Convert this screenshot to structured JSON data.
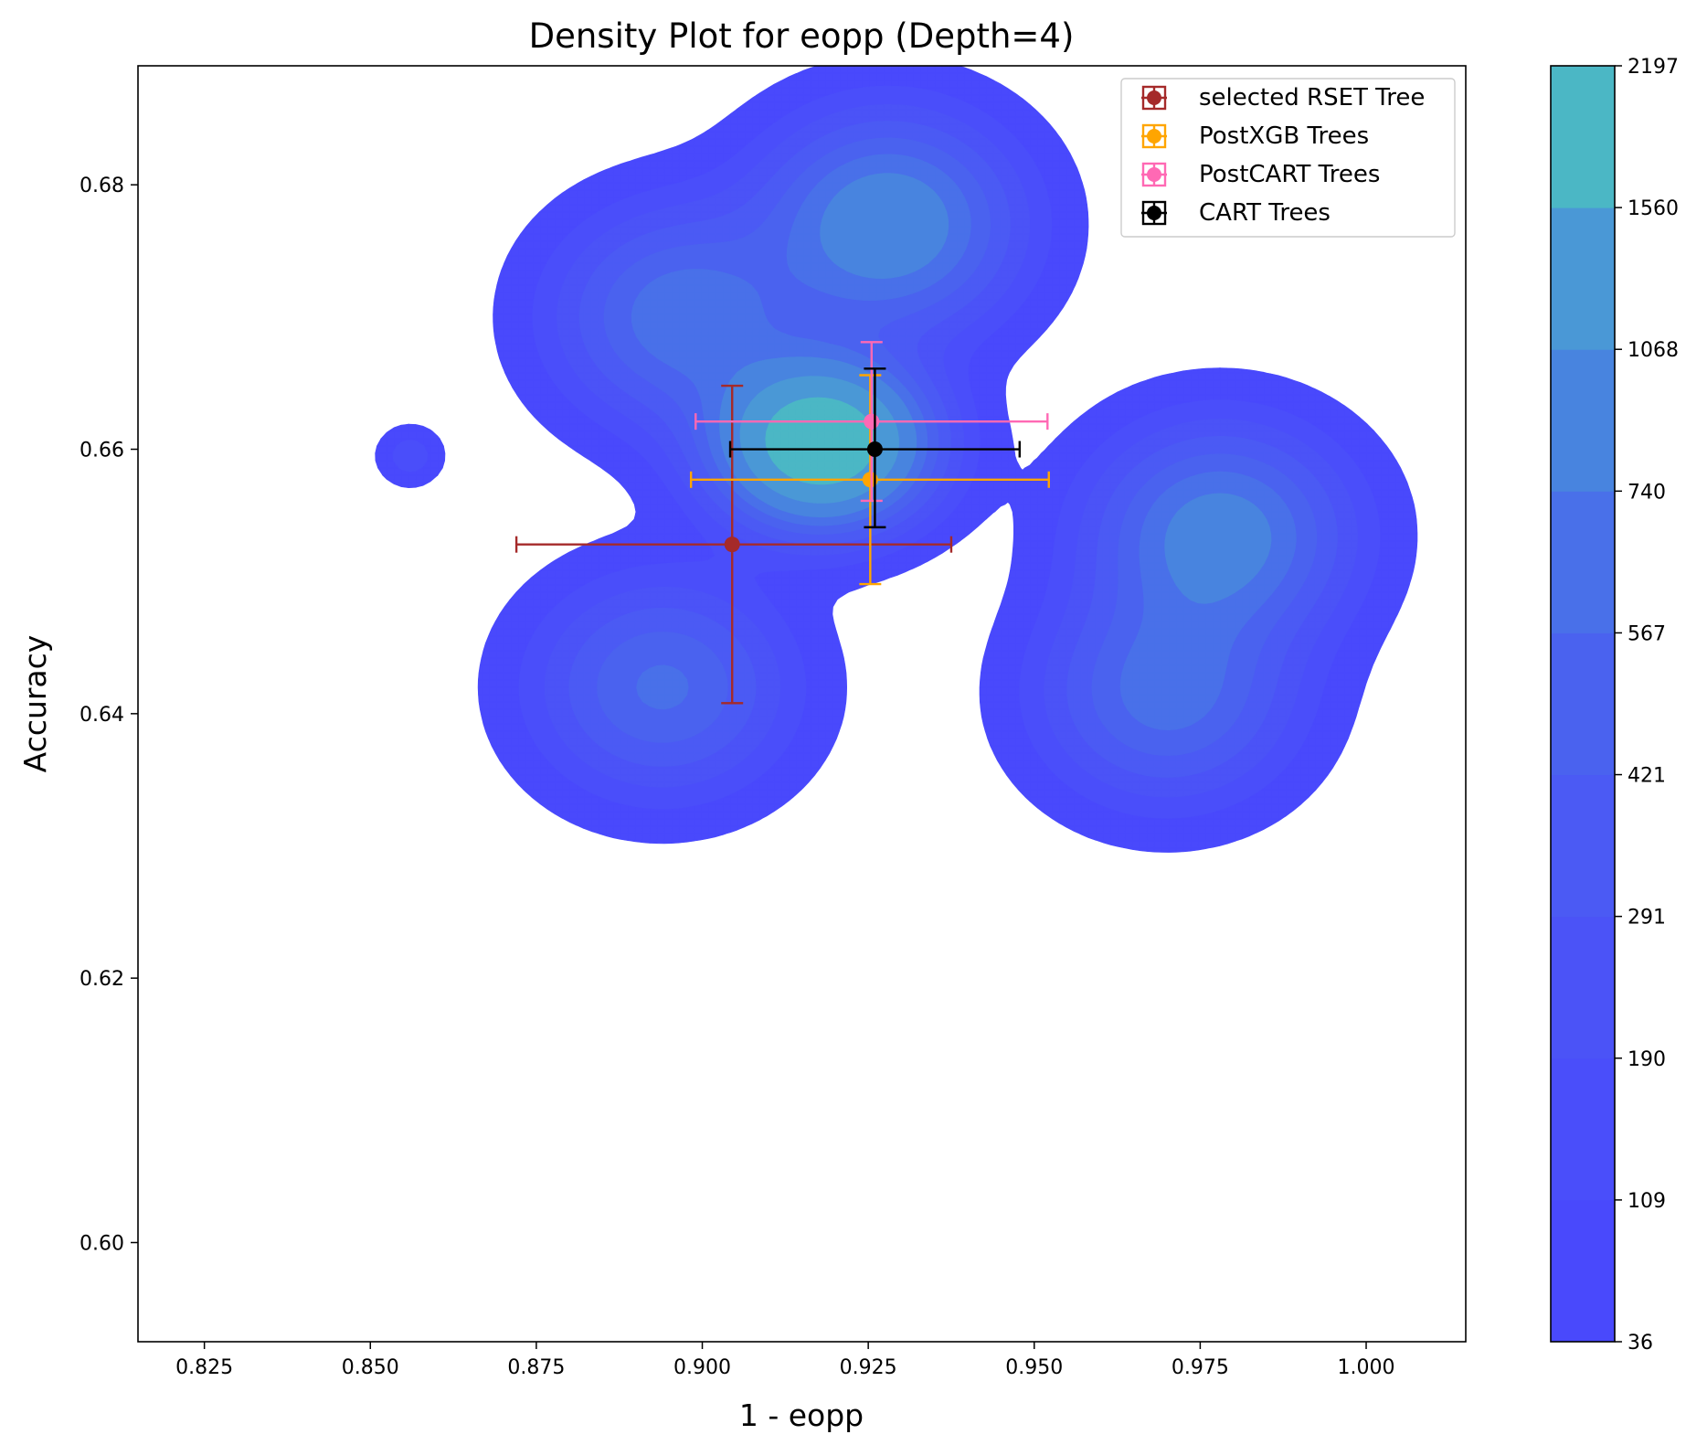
{
  "chart_data": {
    "type": "density_contour_with_errorbars",
    "title": "Density Plot for eopp (Depth=4)",
    "xlabel": "1 - eopp",
    "ylabel": "Accuracy",
    "xlim": [
      0.815,
      1.015
    ],
    "ylim": [
      0.5925,
      0.689
    ],
    "x_ticks": [
      0.825,
      0.85,
      0.875,
      0.9,
      0.925,
      0.95,
      0.975,
      1.0
    ],
    "x_tick_labels": [
      "0.825",
      "0.850",
      "0.875",
      "0.900",
      "0.925",
      "0.950",
      "0.975",
      "1.000"
    ],
    "y_ticks": [
      0.6,
      0.62,
      0.64,
      0.66,
      0.68
    ],
    "y_tick_labels": [
      "0.60",
      "0.62",
      "0.64",
      "0.66",
      "0.68"
    ],
    "grid": false,
    "legend_position": "top-right",
    "colorbar": {
      "levels": [
        36,
        109,
        190,
        291,
        421,
        567,
        740,
        1068,
        1560,
        2197
      ],
      "labels": [
        "36",
        "109",
        "190",
        "291",
        "421",
        "567",
        "740",
        "1068",
        "1560",
        "2197"
      ],
      "colors": [
        "#4949fc",
        "#4a4efa",
        "#4b53f7",
        "#4b5af4",
        "#4a62ef",
        "#4970e9",
        "#4884df",
        "#4a98d6",
        "#4bb7c5",
        "#4ee3ac"
      ]
    },
    "density_clusters": [
      {
        "x": 0.918,
        "y": 0.6605,
        "peak": 2197
      },
      {
        "x": 0.928,
        "y": 0.677,
        "peak": 1000
      },
      {
        "x": 0.978,
        "y": 0.6535,
        "peak": 900
      },
      {
        "x": 0.897,
        "y": 0.67,
        "peak": 700
      },
      {
        "x": 0.97,
        "y": 0.6415,
        "peak": 650
      },
      {
        "x": 0.894,
        "y": 0.642,
        "peak": 600
      },
      {
        "x": 0.856,
        "y": 0.6595,
        "peak": 100
      }
    ],
    "series": [
      {
        "name": "selected RSET Tree",
        "color": "#a52a2a",
        "x": 0.9045,
        "y": 0.6528,
        "xerr": [
          0.872,
          0.9375
        ],
        "yerr": [
          0.6408,
          0.6648
        ]
      },
      {
        "name": "PostXGB Trees",
        "color": "#ffa500",
        "x": 0.9253,
        "y": 0.6577,
        "xerr": [
          0.8983,
          0.9522
        ],
        "yerr": [
          0.6498,
          0.6656
        ]
      },
      {
        "name": "PostCART Trees",
        "color": "#ff69b4",
        "x": 0.9255,
        "y": 0.6621,
        "xerr": [
          0.899,
          0.952
        ],
        "yerr": [
          0.6561,
          0.6681
        ]
      },
      {
        "name": "CART Trees",
        "color": "#000000",
        "x": 0.926,
        "y": 0.66,
        "xerr": [
          0.9042,
          0.9478
        ],
        "yerr": [
          0.6541,
          0.6661
        ]
      }
    ]
  }
}
